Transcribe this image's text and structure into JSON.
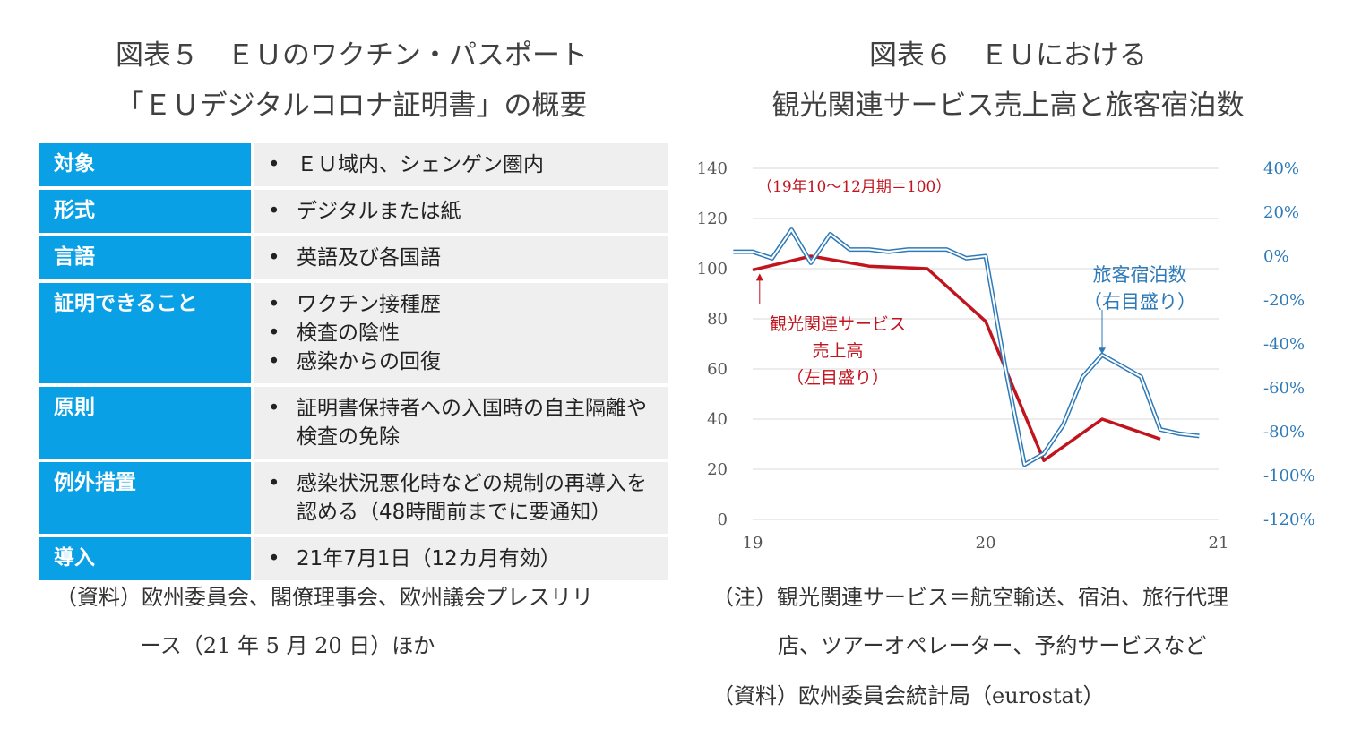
{
  "left": {
    "title_line1": "図表５　ＥＵのワクチン・パスポート",
    "title_line2": "「ＥＵデジタルコロナ証明書」の概要",
    "rows": [
      {
        "label": "対象",
        "items": [
          "ＥＵ域内、シェンゲン圏内"
        ]
      },
      {
        "label": "形式",
        "items": [
          "デジタルまたは紙"
        ]
      },
      {
        "label": "言語",
        "items": [
          "英語及び各国語"
        ]
      },
      {
        "label": "証明できること",
        "items": [
          "ワクチン接種歴",
          "検査の陰性",
          "感染からの回復"
        ]
      },
      {
        "label": "原則",
        "items": [
          "証明書保持者への入国時の自主隔離や検査の免除"
        ]
      },
      {
        "label": "例外措置",
        "items": [
          "感染状況悪化時などの規制の再導入を認める（48時間前までに要通知）"
        ]
      },
      {
        "label": "導入",
        "items": [
          "21年7月1日（12カ月有効）"
        ]
      }
    ],
    "bullet": "•",
    "note_line1": "（資料）欧州委員会、閣僚理事会、欧州議会プレスリリ",
    "note_line2": "ース（21 年 5 月 20 日）ほか"
  },
  "right": {
    "title_line1": "図表６　ＥＵにおける",
    "title_line2": "観光関連サービス売上高と旅客宿泊数",
    "note_line1": "（注）観光関連サービス＝航空輸送、宿泊、旅行代理",
    "note_line2": "店、ツアーオペレーター、予約サービスなど",
    "note_line3": "（資料）欧州委員会統計局（eurostat）"
  },
  "chart_data": {
    "type": "line",
    "base_note": "（19年10～12月期＝100）",
    "x_ticks": [
      "19",
      "20",
      "21"
    ],
    "y_left": {
      "min": 0,
      "max": 140,
      "ticks": [
        0,
        20,
        40,
        60,
        80,
        100,
        120,
        140
      ]
    },
    "y_right": {
      "min": -120,
      "max": 40,
      "ticks": [
        "40%",
        "20%",
        "0%",
        "-20%",
        "-40%",
        "-60%",
        "-80%",
        "-100%",
        "-120%"
      ]
    },
    "gridlines": true,
    "series": [
      {
        "name_lines": [
          "観光関連サービス",
          "売上高",
          "（左目盛り）"
        ],
        "axis": "left",
        "color": "#c0141e",
        "x": [
          2019.0,
          2019.25,
          2019.5,
          2019.75,
          2020.0,
          2020.25,
          2020.5,
          2020.75
        ],
        "values": [
          99.5,
          105,
          101,
          100,
          79,
          23.5,
          40,
          32
        ]
      },
      {
        "name_lines": [
          "旅客宿泊数",
          "（右目盛り）"
        ],
        "axis": "right",
        "color": "#2e7ab8",
        "x": [
          2018.917,
          2019.0,
          2019.083,
          2019.167,
          2019.25,
          2019.333,
          2019.417,
          2019.5,
          2019.583,
          2019.667,
          2019.75,
          2019.833,
          2019.917,
          2020.0,
          2020.083,
          2020.167,
          2020.25,
          2020.333,
          2020.417,
          2020.5,
          2020.583,
          2020.667,
          2020.75,
          2020.833,
          2020.917
        ],
        "values": [
          2,
          2,
          -1,
          12,
          -3,
          10,
          3,
          3,
          2,
          3,
          3,
          3,
          -1,
          0,
          -50,
          -95,
          -90,
          -77,
          -55,
          -45,
          -50,
          -55,
          -79,
          -81,
          -82
        ]
      }
    ]
  }
}
